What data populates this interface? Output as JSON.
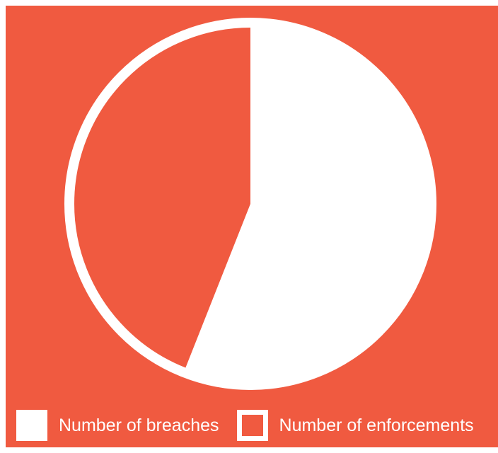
{
  "colors": {
    "background": "#f05a40",
    "foreground": "#ffffff"
  },
  "chart_data": {
    "type": "pie",
    "title": "",
    "series": [
      {
        "name": "Number of breaches",
        "value": 56,
        "fill": "solid"
      },
      {
        "name": "Number of enforcements",
        "value": 44,
        "fill": "outline"
      }
    ],
    "legend": {
      "position": "bottom",
      "items": [
        {
          "label": "Number of breaches",
          "swatch": "filled"
        },
        {
          "label": "Number of enforcements",
          "swatch": "outline"
        }
      ]
    }
  }
}
